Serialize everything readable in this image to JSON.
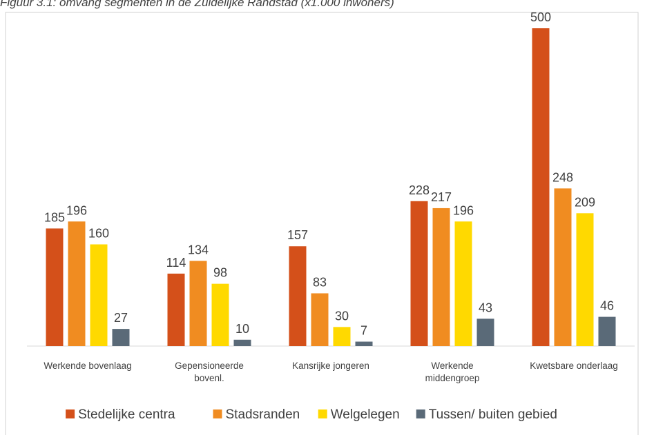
{
  "chart_data": {
    "type": "bar",
    "title": "Figuur 3.1: omvang segmenten in de Zuidelijke Randstad (x1.000 inwoners)",
    "categories": [
      [
        "Werkende bovenlaag"
      ],
      [
        "Gepensioneerde",
        "bovenl."
      ],
      [
        "Kansrijke jongeren"
      ],
      [
        "Werkende",
        "middengroep"
      ],
      [
        "Kwetsbare onderlaag"
      ]
    ],
    "series": [
      {
        "name": "Stedelijke centra",
        "color": "#d4501a",
        "values": [
          185,
          114,
          157,
          228,
          500
        ]
      },
      {
        "name": "Stadsranden",
        "color": "#f08c21",
        "values": [
          196,
          134,
          83,
          217,
          248
        ]
      },
      {
        "name": "Welgelegen",
        "color": "#ffd900",
        "values": [
          160,
          98,
          30,
          196,
          209
        ]
      },
      {
        "name": "Tussen/ buiten gebied",
        "color": "#5a6a78",
        "values": [
          27,
          10,
          7,
          43,
          46
        ]
      }
    ],
    "ylim": [
      0,
      500
    ]
  }
}
